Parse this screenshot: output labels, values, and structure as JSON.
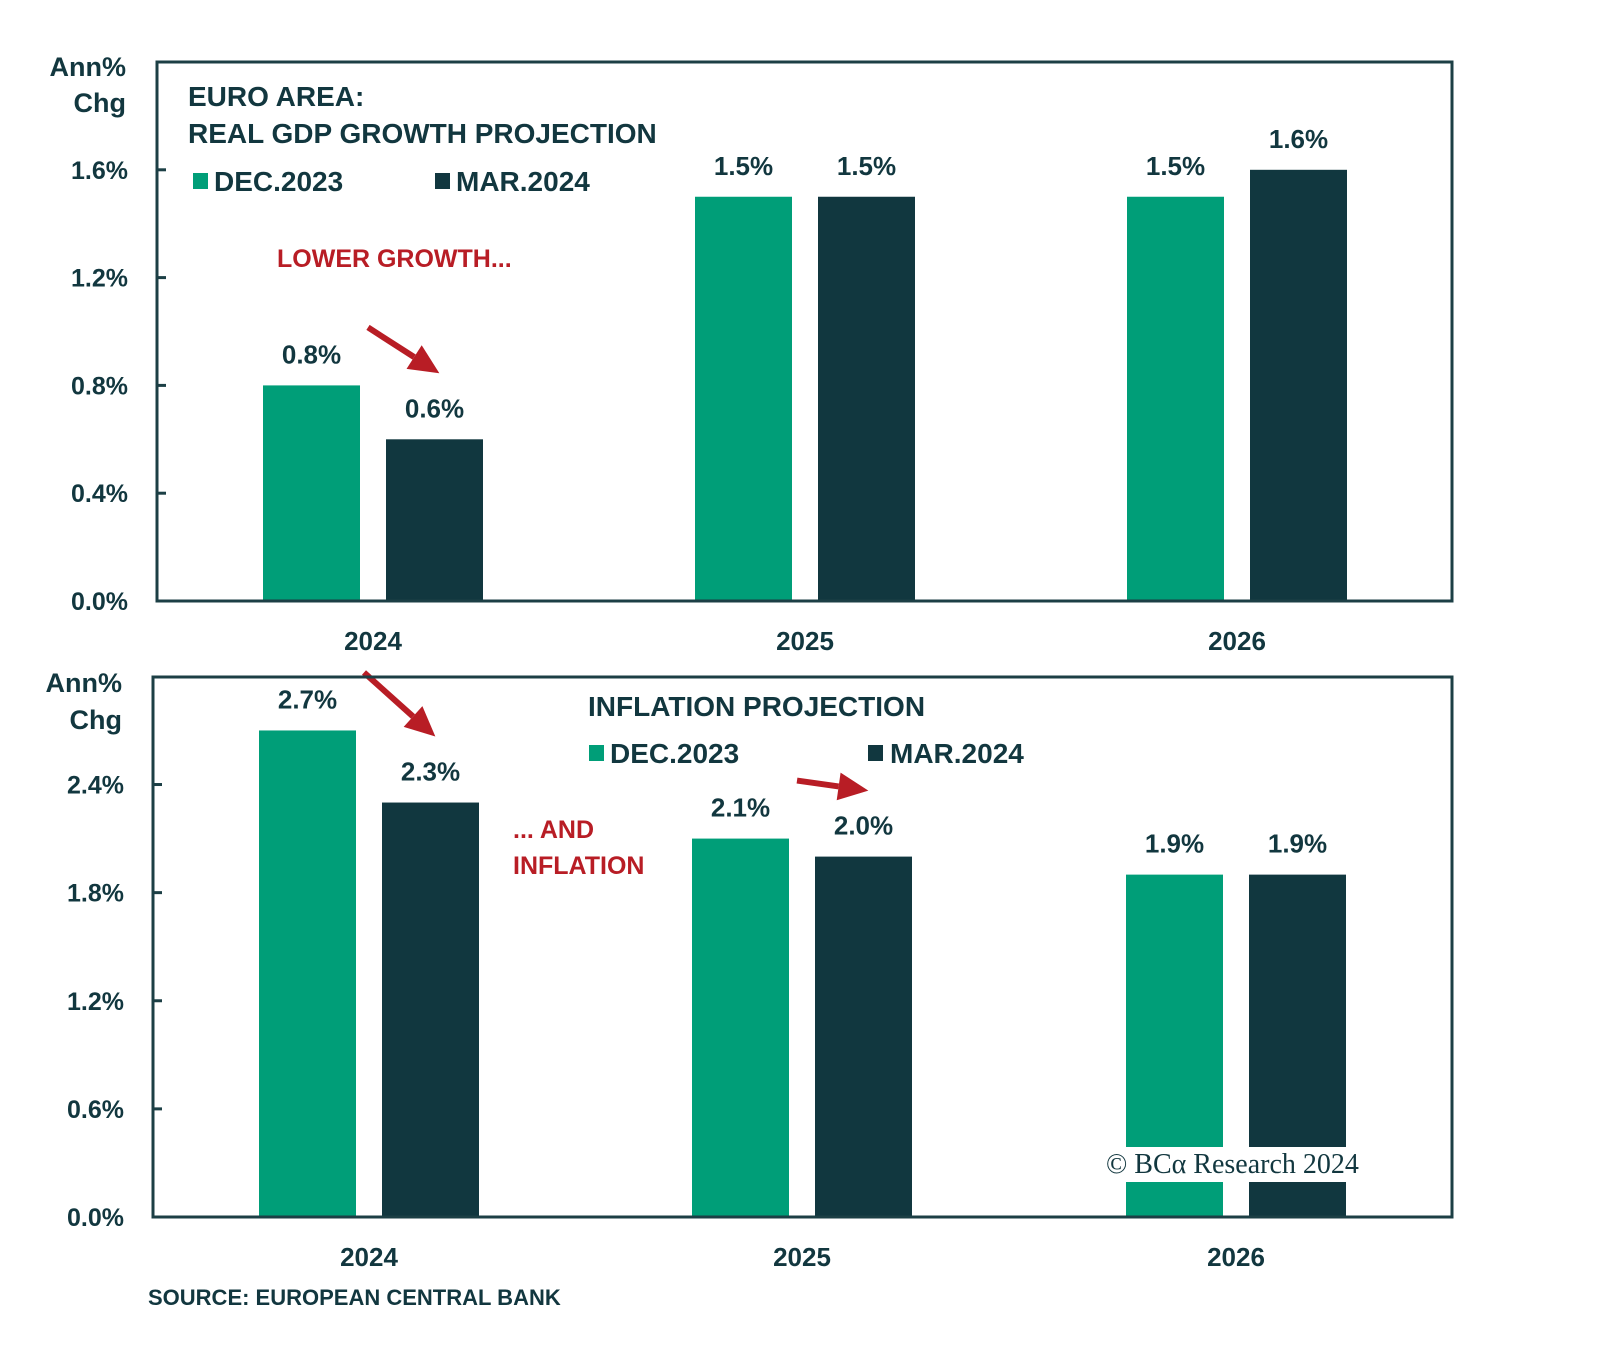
{
  "colors": {
    "dec2023": "#009e78",
    "mar2024": "#11373f",
    "axis": "#1c3f45",
    "text": "#12373f",
    "annotation": "#b81d25",
    "background": "#ffffff"
  },
  "source": "SOURCE: EUROPEAN CENTRAL BANK",
  "watermark": "© BCα Research 2024",
  "chart_data": [
    {
      "type": "bar",
      "title_line1": "EURO AREA:",
      "title_line2": "REAL GDP GROWTH PROJECTION",
      "ylabel_line1": "Ann%",
      "ylabel_line2": "Chg",
      "xlabel": "",
      "categories": [
        "2024",
        "2025",
        "2026"
      ],
      "series": [
        {
          "name": "DEC.2023",
          "color_key": "dec2023",
          "values": [
            0.8,
            1.5,
            1.5
          ],
          "labels": [
            "0.8%",
            "1.5%",
            "1.5%"
          ]
        },
        {
          "name": "MAR.2024",
          "color_key": "mar2024",
          "values": [
            0.6,
            1.5,
            1.6
          ],
          "labels": [
            "0.6%",
            "1.5%",
            "1.6%"
          ]
        }
      ],
      "yticks": [
        0.0,
        0.4,
        0.8,
        1.2,
        1.6
      ],
      "ytick_labels": [
        "0.0%",
        "0.4%",
        "0.8%",
        "1.2%",
        "1.6%"
      ],
      "ylim": [
        0.0,
        2.0
      ],
      "grid": false,
      "legend_position": "top-left",
      "annotations": [
        {
          "text": "LOWER GROWTH...",
          "near": "2024"
        }
      ],
      "arrows": [
        {
          "category": "2024",
          "from_series": "DEC.2023",
          "to_series": "MAR.2024"
        }
      ]
    },
    {
      "type": "bar",
      "title_line1": "INFLATION PROJECTION",
      "ylabel_line1": "Ann%",
      "ylabel_line2": "Chg",
      "xlabel": "",
      "categories": [
        "2024",
        "2025",
        "2026"
      ],
      "series": [
        {
          "name": "DEC.2023",
          "color_key": "dec2023",
          "values": [
            2.7,
            2.1,
            1.9
          ],
          "labels": [
            "2.7%",
            "2.1%",
            "1.9%"
          ]
        },
        {
          "name": "MAR.2024",
          "color_key": "mar2024",
          "values": [
            2.3,
            2.0,
            1.9
          ],
          "labels": [
            "2.3%",
            "2.0%",
            "1.9%"
          ]
        }
      ],
      "yticks": [
        0.0,
        0.6,
        1.2,
        1.8,
        2.4
      ],
      "ytick_labels": [
        "0.0%",
        "0.6%",
        "1.2%",
        "1.8%",
        "2.4%"
      ],
      "ylim": [
        0.0,
        3.0
      ],
      "grid": false,
      "legend_position": "top-center",
      "annotations": [
        {
          "text_line1": "... AND",
          "text_line2": "INFLATION",
          "near": "2024"
        }
      ],
      "arrows": [
        {
          "category": "2024",
          "from_series": "DEC.2023",
          "to_series": "MAR.2024"
        },
        {
          "category": "2025",
          "from_series": "DEC.2023",
          "to_series": "MAR.2024"
        }
      ]
    }
  ]
}
